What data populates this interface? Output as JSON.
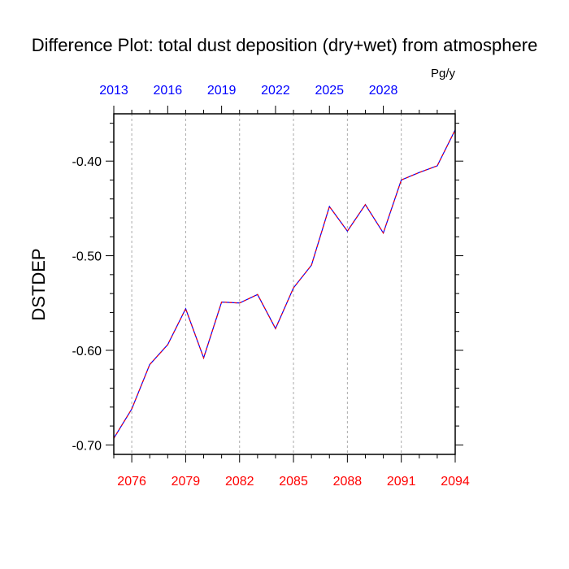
{
  "chart_data": {
    "type": "line",
    "title": "Difference Plot: total dust deposition (dry+wet) from atmosphere",
    "units": "Pg/y",
    "ylabel": "DSTDEP",
    "xlabel": "",
    "xlim": [
      2075,
      2094
    ],
    "ylim": [
      -0.71,
      -0.35
    ],
    "grid": "vertical-dashed",
    "bottom_axis": {
      "color": "#ff0000",
      "ticks": [
        "2076",
        "2079",
        "2082",
        "2085",
        "2088",
        "2091",
        "2094"
      ]
    },
    "top_axis": {
      "color": "#0000ff",
      "ticks": [
        "2013",
        "2016",
        "2019",
        "2022",
        "2025",
        "2028"
      ]
    },
    "yticks": [
      "-0.40",
      "-0.50",
      "-0.60",
      "-0.70"
    ],
    "series": [
      {
        "color": "#b000b0",
        "style": "dashed",
        "x": [
          2075,
          2076,
          2077,
          2078,
          2079,
          2080,
          2081,
          2082,
          2083,
          2084,
          2085,
          2086,
          2087,
          2088,
          2089,
          2090,
          2091,
          2092,
          2093,
          2094
        ],
        "values": [
          -0.693,
          -0.662,
          -0.615,
          -0.594,
          -0.556,
          -0.608,
          -0.549,
          -0.55,
          -0.541,
          -0.577,
          -0.534,
          -0.51,
          -0.448,
          -0.474,
          -0.446,
          -0.476,
          -0.42,
          -0.412,
          -0.405,
          -0.367
        ]
      }
    ]
  }
}
